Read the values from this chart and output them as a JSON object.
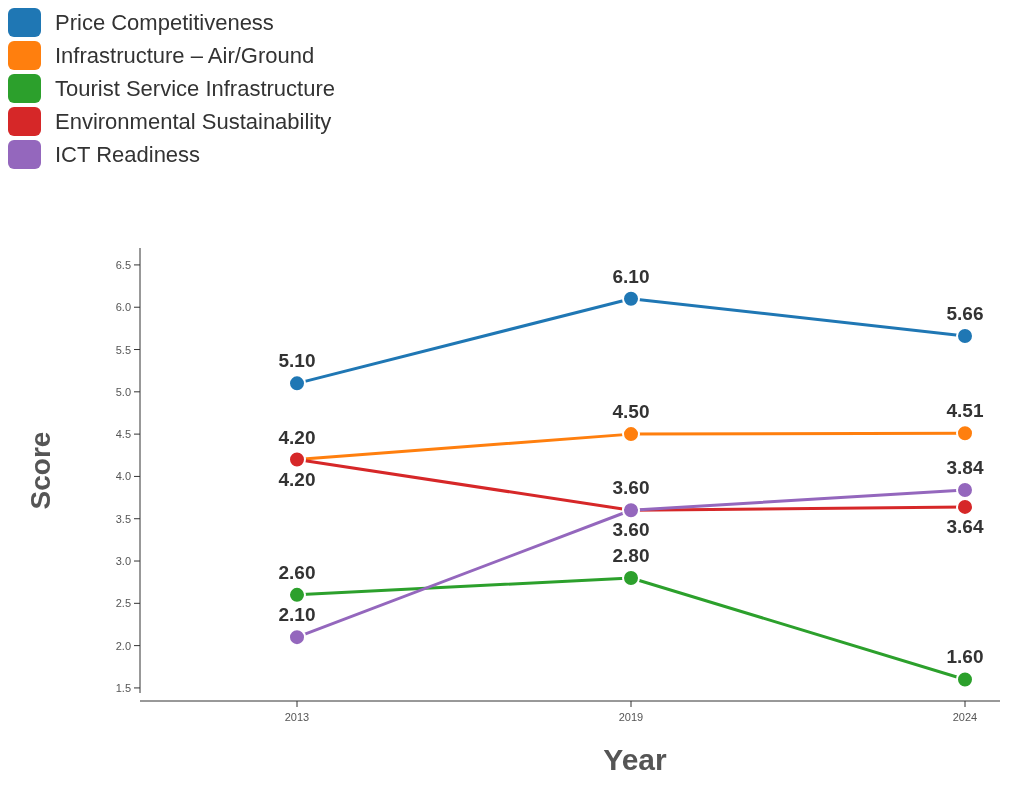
{
  "chart_data": {
    "type": "line",
    "xlabel": "Year",
    "ylabel": "Score",
    "categories": [
      "2013",
      "2019",
      "2024"
    ],
    "series": [
      {
        "name": "Price Competitiveness",
        "color": "#1f77b4",
        "values": [
          5.1,
          6.1,
          5.66
        ],
        "value_labels": [
          "5.10",
          "6.10",
          "5.66"
        ]
      },
      {
        "name": "Infrastructure – Air/Ground",
        "color": "#ff7f0e",
        "values": [
          4.2,
          4.5,
          4.51
        ],
        "value_labels": [
          "4.20",
          "4.50",
          "4.51"
        ]
      },
      {
        "name": "Tourist Service Infrastructure",
        "color": "#2ca02c",
        "values": [
          2.6,
          2.8,
          1.6
        ],
        "value_labels": [
          "2.60",
          "2.80",
          "1.60"
        ]
      },
      {
        "name": "Environmental Sustainability",
        "color": "#d62728",
        "values": [
          4.2,
          3.6,
          3.64
        ],
        "value_labels": [
          "4.20",
          "3.60",
          "3.64"
        ]
      },
      {
        "name": "ICT Readiness",
        "color": "#9467bd",
        "values": [
          2.1,
          3.6,
          3.84
        ],
        "value_labels": [
          "2.10",
          "3.60",
          "3.84"
        ]
      }
    ],
    "ylim": [
      1.44,
      6.7
    ],
    "yticks": [
      {
        "value": 1.5,
        "label": "1.5"
      },
      {
        "value": 2,
        "label": "2.0"
      },
      {
        "value": 2.5,
        "label": "2.5"
      },
      {
        "value": 3,
        "label": "3.0"
      },
      {
        "value": 3.5,
        "label": "3.5"
      },
      {
        "value": 4,
        "label": "4.0"
      },
      {
        "value": 4.5,
        "label": "4.5"
      },
      {
        "value": 5,
        "label": "5.0"
      },
      {
        "value": 5.5,
        "label": "5.5"
      },
      {
        "value": 6,
        "label": "6.0"
      },
      {
        "value": 6.5,
        "label": "6.5"
      }
    ],
    "legend": "top left",
    "marker": "circle",
    "line_style": "solid"
  }
}
